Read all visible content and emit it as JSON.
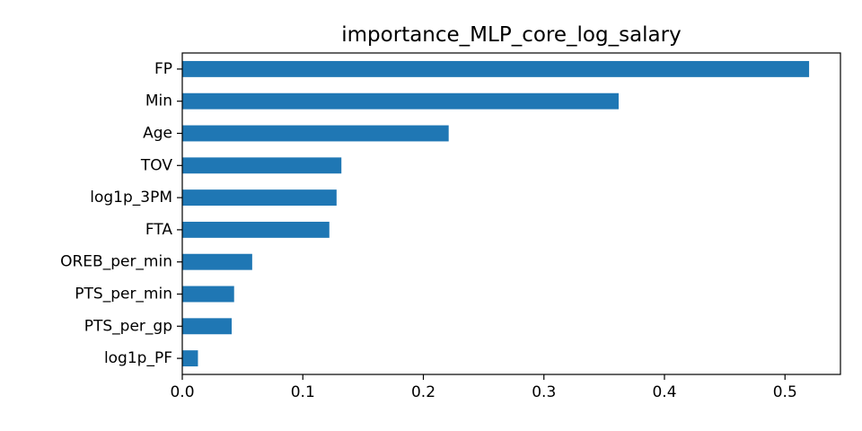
{
  "chart_data": {
    "type": "bar",
    "orientation": "horizontal",
    "title": "importance_MLP_core_log_salary",
    "xlabel": "",
    "ylabel": "",
    "categories": [
      "FP",
      "Min",
      "Age",
      "TOV",
      "log1p_3PM",
      "FTA",
      "OREB_per_min",
      "PTS_per_min",
      "PTS_per_gp",
      "log1p_PF"
    ],
    "values": [
      0.52,
      0.362,
      0.221,
      0.132,
      0.128,
      0.122,
      0.058,
      0.043,
      0.041,
      0.013
    ],
    "xlim": [
      0,
      0.546
    ],
    "xticks": [
      0.0,
      0.1,
      0.2,
      0.3,
      0.4,
      0.5
    ],
    "xtick_labels": [
      "0.0",
      "0.1",
      "0.2",
      "0.3",
      "0.4",
      "0.5"
    ],
    "grid": false,
    "legend": "none",
    "bar_color": "#1f77b4"
  }
}
